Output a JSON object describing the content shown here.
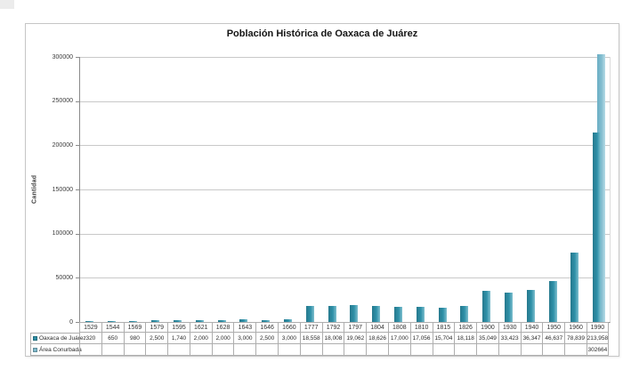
{
  "colors": {
    "series_dark": "#2E8FA6",
    "series_dark_gradient": [
      "#26798D",
      "#2F91A9",
      "#7FBFCE"
    ],
    "series_light": "#7FBACD",
    "series_light_gradient": [
      "#6BAFC5",
      "#83BDD0",
      "#B7DCE6"
    ],
    "gridline": "#c9c9c9",
    "axis": "#8a8a8a",
    "frame_border": "#c6c6c6",
    "table_border": "#aeaeae"
  },
  "chart_data": {
    "type": "bar",
    "title": "Población Histórica de Oaxaca de Juárez",
    "xlabel": "",
    "ylabel": "Cantidad",
    "ylim": [
      0,
      300000
    ],
    "yticks": [
      0,
      50000,
      100000,
      150000,
      200000,
      250000,
      300000
    ],
    "grid": true,
    "legend_position": "table-left",
    "categories": [
      "1529",
      "1544",
      "1569",
      "1579",
      "1595",
      "1621",
      "1628",
      "1643",
      "1646",
      "1660",
      "1777",
      "1792",
      "1797",
      "1804",
      "1808",
      "1810",
      "1815",
      "1826",
      "1900",
      "1930",
      "1940",
      "1950",
      "1960",
      "1990"
    ],
    "series": [
      {
        "name": "Oaxaca de Juárez",
        "color": "#2E8FA6",
        "values": [
          320,
          650,
          980,
          2500,
          1740,
          2000,
          2000,
          3000,
          2500,
          3000,
          18558,
          18008,
          19062,
          18626,
          17000,
          17056,
          15704,
          18118,
          35049,
          33423,
          36347,
          46637,
          78839,
          213958
        ],
        "display": [
          "320",
          "650",
          "980",
          "2,500",
          "1,740",
          "2,000",
          "2,000",
          "3,000",
          "2,500",
          "3,000",
          "18,558",
          "18,008",
          "19,062",
          "18,626",
          "17,000",
          "17,056",
          "15,704",
          "18,118",
          "35,049",
          "33,423",
          "36,347",
          "46,637",
          "78,839",
          "213,958"
        ]
      },
      {
        "name": "Área Conurbada",
        "color": "#7FBACD",
        "values": [
          null,
          null,
          null,
          null,
          null,
          null,
          null,
          null,
          null,
          null,
          null,
          null,
          null,
          null,
          null,
          null,
          null,
          null,
          null,
          null,
          null,
          null,
          null,
          302664
        ],
        "display": [
          "",
          "",
          "",
          "",
          "",
          "",
          "",
          "",
          "",
          "",
          "",
          "",
          "",
          "",
          "",
          "",
          "",
          "",
          "",
          "",
          "",
          "",
          "",
          "302664"
        ]
      }
    ]
  }
}
